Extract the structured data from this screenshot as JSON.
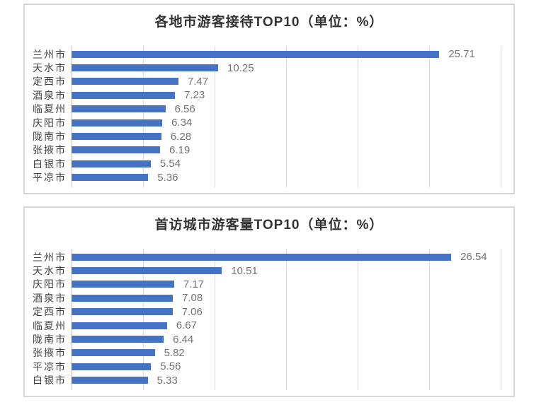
{
  "theme": {
    "page_background": "#ffffff",
    "panel_border_color": "#d8d8d8",
    "gridline_color": "#d9d9d9",
    "title_color": "#333333",
    "category_label_color": "#404040",
    "value_label_color": "#737373"
  },
  "chart_data": [
    {
      "type": "bar",
      "orientation": "horizontal",
      "title": "各地市游客接待TOP10（单位：%）",
      "categories": [
        "兰州市",
        "天水市",
        "定西市",
        "酒泉市",
        "临夏州",
        "庆阳市",
        "陇南市",
        "张掖市",
        "白银市",
        "平凉市"
      ],
      "values": [
        25.71,
        10.25,
        7.47,
        7.23,
        6.56,
        6.34,
        6.28,
        6.19,
        5.54,
        5.36
      ],
      "value_decimals": 2,
      "xlim": [
        0,
        30
      ],
      "gridline_interval": 5,
      "grid": "on",
      "legend": "none",
      "bar_color": "#4472C4"
    },
    {
      "type": "bar",
      "orientation": "horizontal",
      "title": "首访城市游客量TOP10（单位：%）",
      "categories": [
        "兰州市",
        "天水市",
        "庆阳市",
        "酒泉市",
        "定西市",
        "临夏州",
        "陇南市",
        "张掖市",
        "平凉市",
        "白银市"
      ],
      "values": [
        26.54,
        10.51,
        7.17,
        7.08,
        7.06,
        6.67,
        6.44,
        5.82,
        5.56,
        5.33
      ],
      "value_decimals": 2,
      "xlim": [
        0,
        30
      ],
      "gridline_interval": 5,
      "grid": "on",
      "legend": "none",
      "bar_color": "#4472C4"
    }
  ]
}
